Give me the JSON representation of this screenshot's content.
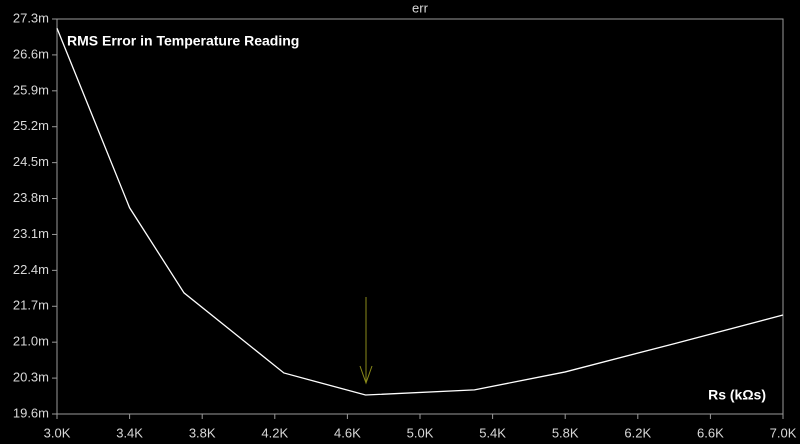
{
  "chart_data": {
    "type": "line",
    "title": "RMS Error in Temperature Reading",
    "x_label": "Rs (kΩs)",
    "x": [
      3.0,
      3.4,
      3.7,
      4.25,
      4.7,
      5.3,
      5.8,
      6.4,
      7.0
    ],
    "series": [
      {
        "name": "err",
        "color": "#ffffff",
        "values": [
          27.12,
          23.62,
          21.96,
          20.4,
          19.97,
          20.07,
          20.42,
          20.97,
          21.53
        ]
      }
    ],
    "xlim": [
      3.0,
      7.0
    ],
    "xticks": [
      {
        "value": 3.0,
        "label": "3.0K"
      },
      {
        "value": 3.4,
        "label": "3.4K"
      },
      {
        "value": 3.8,
        "label": "3.8K"
      },
      {
        "value": 4.2,
        "label": "4.2K"
      },
      {
        "value": 4.6,
        "label": "4.6K"
      },
      {
        "value": 5.0,
        "label": "5.0K"
      },
      {
        "value": 5.4,
        "label": "5.4K"
      },
      {
        "value": 5.8,
        "label": "5.8K"
      },
      {
        "value": 6.2,
        "label": "6.2K"
      },
      {
        "value": 6.6,
        "label": "6.6K"
      },
      {
        "value": 7.0,
        "label": "7.0K"
      }
    ],
    "ylim": [
      19.6,
      27.3
    ],
    "yticks": [
      {
        "value": 19.6,
        "label": "19.6m"
      },
      {
        "value": 20.3,
        "label": "20.3m"
      },
      {
        "value": 21.0,
        "label": "21.0m"
      },
      {
        "value": 21.7,
        "label": "21.7m"
      },
      {
        "value": 22.4,
        "label": "22.4m"
      },
      {
        "value": 23.1,
        "label": "23.1m"
      },
      {
        "value": 23.8,
        "label": "23.8m"
      },
      {
        "value": 24.5,
        "label": "24.5m"
      },
      {
        "value": 25.2,
        "label": "25.2m"
      },
      {
        "value": 25.9,
        "label": "25.9m"
      },
      {
        "value": 26.6,
        "label": "26.6m"
      },
      {
        "value": 27.3,
        "label": "27.3m"
      }
    ],
    "grid": false
  }
}
